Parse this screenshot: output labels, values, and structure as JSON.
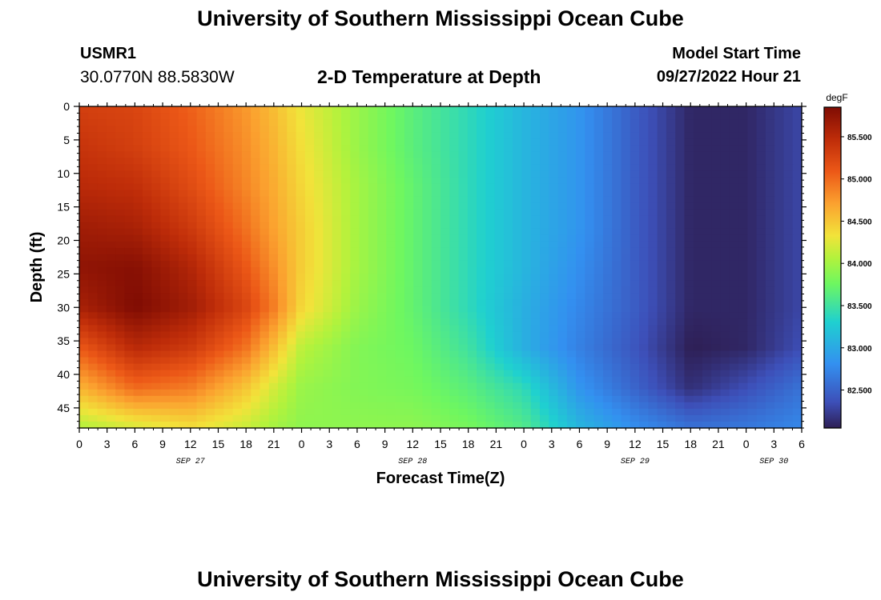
{
  "header": {
    "title": "University of Southern Mississippi Ocean Cube",
    "station_id": "USMR1",
    "coords": "30.0770N  88.5830W",
    "chart_title": "2-D Temperature at Depth",
    "start_label": "Model Start Time",
    "start_value": "09/27/2022 Hour 21"
  },
  "footer": {
    "title": "University of Southern Mississippi Ocean Cube"
  },
  "chart_data": {
    "type": "heatmap",
    "title": "2-D Temperature at Depth",
    "xlabel": "Forecast Time(Z)",
    "ylabel": "Depth (ft)",
    "x_unit": "hours since 2022-09-27 00Z",
    "xlim": [
      0,
      78
    ],
    "ylim": [
      48,
      0
    ],
    "x_tick_values": [
      0,
      3,
      6,
      9,
      12,
      15,
      18,
      21,
      24,
      27,
      30,
      33,
      36,
      39,
      42,
      45,
      48,
      51,
      54,
      57,
      60,
      63,
      66,
      69,
      72,
      75,
      78
    ],
    "x_tick_labels": [
      "0",
      "3",
      "6",
      "9",
      "12",
      "15",
      "18",
      "21",
      "0",
      "3",
      "6",
      "9",
      "12",
      "15",
      "18",
      "21",
      "0",
      "3",
      "6",
      "9",
      "12",
      "15",
      "18",
      "21",
      "0",
      "3",
      "6"
    ],
    "date_labels": [
      {
        "label": "SEP 27",
        "x": 12
      },
      {
        "label": "SEP 28",
        "x": 36
      },
      {
        "label": "SEP 29",
        "x": 60
      },
      {
        "label": "SEP 30",
        "x": 75
      }
    ],
    "y_ticks": [
      0,
      5,
      10,
      15,
      20,
      25,
      30,
      35,
      40,
      45
    ],
    "colorbar": {
      "unit": "degF",
      "min": 82.05,
      "max": 85.85,
      "tick_values": [
        82.5,
        83.0,
        83.5,
        84.0,
        84.5,
        85.0,
        85.5
      ],
      "tick_labels": [
        "82.500",
        "83.000",
        "83.500",
        "84.000",
        "84.500",
        "85.000",
        "85.500"
      ],
      "colors": [
        "#2e1f55",
        "#3d4fb8",
        "#3390f0",
        "#1fd0d0",
        "#6ef760",
        "#b3f23c",
        "#f2e33a",
        "#fba12f",
        "#ec5817",
        "#be2c09",
        "#7f0c03"
      ],
      "color_positions": [
        0,
        0.08,
        0.2,
        0.33,
        0.45,
        0.53,
        0.6,
        0.7,
        0.8,
        0.9,
        1
      ]
    },
    "depths": [
      0,
      6,
      12,
      18,
      24,
      30,
      36,
      42,
      48
    ],
    "times": [
      0,
      6,
      12,
      18,
      21,
      24,
      30,
      36,
      42,
      48,
      54,
      60,
      66,
      72,
      78
    ],
    "values": [
      [
        85.3,
        85.25,
        85.05,
        84.75,
        84.55,
        84.3,
        83.95,
        83.65,
        83.4,
        83.1,
        82.85,
        82.45,
        82.1,
        82.1,
        82.3
      ],
      [
        85.4,
        85.3,
        85.1,
        84.8,
        84.6,
        84.35,
        83.95,
        83.65,
        83.4,
        83.1,
        82.85,
        82.45,
        82.1,
        82.1,
        82.3
      ],
      [
        85.5,
        85.45,
        85.2,
        84.85,
        84.65,
        84.4,
        84.0,
        83.7,
        83.4,
        83.1,
        82.85,
        82.45,
        82.1,
        82.1,
        82.3
      ],
      [
        85.65,
        85.6,
        85.35,
        84.95,
        84.7,
        84.45,
        84.0,
        83.7,
        83.4,
        83.1,
        82.85,
        82.45,
        82.1,
        82.1,
        82.3
      ],
      [
        85.75,
        85.8,
        85.55,
        85.1,
        84.8,
        84.45,
        84.0,
        83.7,
        83.4,
        83.1,
        82.8,
        82.45,
        82.1,
        82.1,
        82.3
      ],
      [
        85.6,
        85.85,
        85.65,
        85.25,
        84.9,
        84.4,
        83.95,
        83.7,
        83.4,
        83.05,
        82.75,
        82.45,
        82.1,
        82.1,
        82.3
      ],
      [
        85.1,
        85.5,
        85.35,
        84.95,
        84.55,
        84.1,
        83.85,
        83.75,
        83.5,
        83.05,
        82.7,
        82.4,
        82.05,
        82.1,
        82.35
      ],
      [
        84.6,
        85.0,
        84.9,
        84.5,
        84.2,
        83.95,
        83.85,
        83.8,
        83.65,
        83.4,
        82.85,
        82.5,
        82.15,
        82.35,
        82.6
      ],
      [
        84.05,
        84.2,
        84.35,
        84.15,
        84.0,
        83.9,
        83.9,
        83.9,
        83.8,
        83.6,
        83.1,
        82.8,
        82.6,
        82.65,
        82.75
      ]
    ]
  }
}
